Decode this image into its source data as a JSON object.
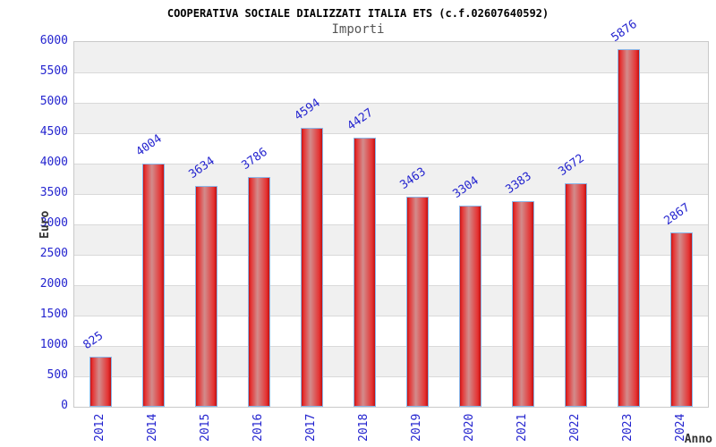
{
  "chart_data": {
    "type": "bar",
    "title": "COOPERATIVA SOCIALE DIALIZZATI ITALIA ETS (c.f.02607640592)",
    "subtitle": "Importi",
    "xlabel": "Anno",
    "ylabel": "Euro",
    "categories": [
      "2012",
      "2014",
      "2015",
      "2016",
      "2017",
      "2018",
      "2019",
      "2020",
      "2021",
      "2022",
      "2023",
      "2024"
    ],
    "values": [
      825,
      4004,
      3634,
      3786,
      4594,
      4427,
      3463,
      3304,
      3383,
      3672,
      5876,
      2867
    ],
    "ylim": [
      0,
      6000
    ],
    "ytick_step": 500,
    "yticks": [
      0,
      500,
      1000,
      1500,
      2000,
      2500,
      3000,
      3500,
      4000,
      4500,
      5000,
      5500,
      6000
    ],
    "grid": "horizontal",
    "legend_position": "none",
    "band_pattern": "alternating gray/white every 500 starting gray below 6000",
    "colors": {
      "tick_label": "#2424cf",
      "value_label": "#2424cf",
      "bar_edge_red": "#c61414",
      "bar_center_highlight": "#d28c8c",
      "bar_border": "#8ab6e8",
      "band_gray": "#f0f0f0",
      "band_white": "#ffffff",
      "grid_line": "#d9d9d9",
      "plot_border": "#c9c9c9",
      "axis_title": "#333333",
      "title": "#000000",
      "subtitle": "#555555"
    }
  }
}
